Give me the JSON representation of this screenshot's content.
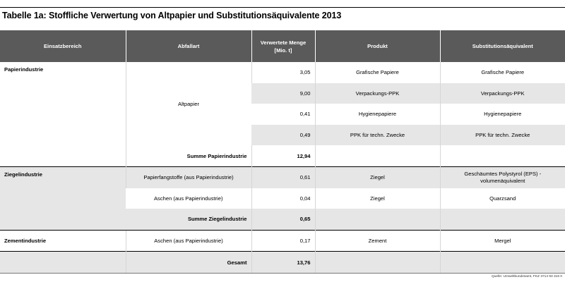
{
  "title": "Tabelle 1a: Stoffliche Verwertung von Altpapier und Substitutionsäquivalente 2013",
  "headers": {
    "einsatzbereich": "Einsatzbereich",
    "abfallart": "Abfallart",
    "menge_line1": "Verwertete Menge",
    "menge_line2": "[Mio. t]",
    "produkt": "Produkt",
    "substitution": "Substitutionsäquivalent"
  },
  "papier": {
    "bereich": "Papierindustrie",
    "abfallart": "Altpapier",
    "rows": [
      {
        "menge": "3,05",
        "produkt": "Grafische Papiere",
        "subst": "Grafische Papiere"
      },
      {
        "menge": "9,00",
        "produkt": "Verpackungs-PPK",
        "subst": "Verpackungs-PPK"
      },
      {
        "menge": "0,41",
        "produkt": "Hygienepapiere",
        "subst": "Hygienepapiere"
      },
      {
        "menge": "0,49",
        "produkt": "PPK für techn. Zwecke",
        "subst": "PPK für techn. Zwecke"
      }
    ],
    "summe_label": "Summe Papierindustrie",
    "summe_wert": "12,94"
  },
  "ziegel": {
    "bereich": "Ziegelindustrie",
    "rows": [
      {
        "abfallart": "Papierfangstoffe (aus Papierindustrie)",
        "menge": "0,61",
        "produkt": "Ziegel",
        "subst_line1": "Geschäumtes Polystyrol (EPS) -",
        "subst_line2": "volumenäquivalent"
      },
      {
        "abfallart": "Aschen (aus Papierindustrie)",
        "menge": "0,04",
        "produkt": "Ziegel",
        "subst": "Quarzsand"
      }
    ],
    "summe_label": "Summe Ziegelindustrie",
    "summe_wert": "0,65"
  },
  "zement": {
    "bereich": "Zementindustrie",
    "abfallart": "Aschen (aus Papierindustrie)",
    "menge": "0,17",
    "produkt": "Zement",
    "subst": "Mergel"
  },
  "gesamt": {
    "label": "Gesamt",
    "wert": "13,76"
  },
  "source": "Quelle: Umweltbundesamt, FKZ 3714 93 316 0"
}
